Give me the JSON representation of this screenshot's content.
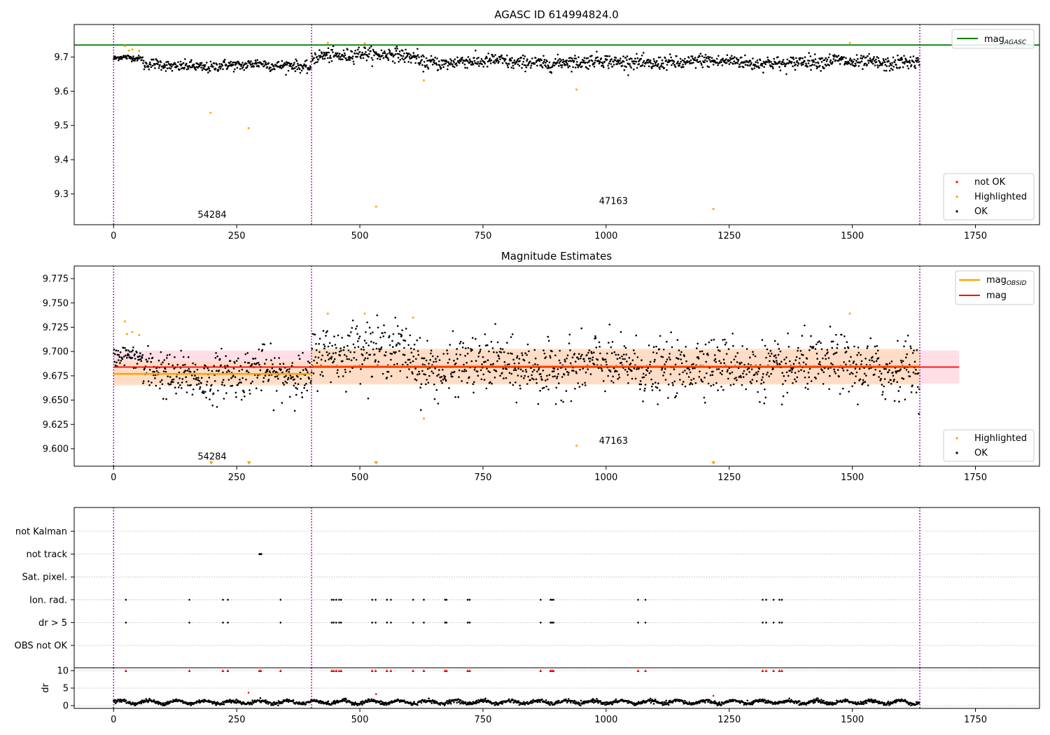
{
  "colors": {
    "ok": "#000000",
    "highlighted": "#ffa500",
    "not_ok": "#ff0000",
    "agasc_line": "#008000",
    "obsid_line": "#ffa500",
    "mag_line": "#ff0000",
    "obs_boundary": "#800080",
    "band_mag": "#ffc0cb",
    "band_obsid": "#ffdab9",
    "grid": "#b0b0b0"
  },
  "chart_data": [
    {
      "type": "scatter",
      "title": "AGASC ID 614994824.0",
      "xlim": [
        -80,
        1880
      ],
      "ylim": [
        9.21,
        9.795
      ],
      "xticks": [
        0,
        250,
        500,
        750,
        1000,
        1250,
        1500,
        1750
      ],
      "yticks": [
        9.3,
        9.4,
        9.5,
        9.6,
        9.7
      ],
      "obs_boundaries": [
        0,
        402,
        1637
      ],
      "obsids": [
        {
          "label": "54284",
          "x": 200,
          "y": 9.23
        },
        {
          "label": "47163",
          "x": 1015,
          "y": 9.27
        }
      ],
      "reference_line": {
        "label": "mag",
        "subscript": "AGASC",
        "value": 9.735
      },
      "legend_lines": [
        {
          "label": "mag",
          "subscript": "AGASC"
        }
      ],
      "legend_points": [
        "not OK",
        "Highlighted",
        "OK"
      ],
      "ok_segments": [
        {
          "x0": 0,
          "x1": 60,
          "mean": 9.695,
          "noise": 0.004
        },
        {
          "x0": 60,
          "x1": 402,
          "mean": 9.675,
          "noise": 0.008
        },
        {
          "x0": 402,
          "x1": 620,
          "mean": 9.705,
          "noise": 0.01
        },
        {
          "x0": 620,
          "x1": 1637,
          "mean": 9.685,
          "noise": 0.01
        }
      ],
      "highlighted_points": [
        [
          23,
          9.732
        ],
        [
          31,
          9.719
        ],
        [
          38,
          9.722
        ],
        [
          52,
          9.718
        ],
        [
          197,
          9.537
        ],
        [
          274,
          9.492
        ],
        [
          435,
          9.741
        ],
        [
          510,
          9.74
        ],
        [
          533,
          9.263
        ],
        [
          630,
          9.632
        ],
        [
          940,
          9.605
        ],
        [
          1218,
          9.256
        ],
        [
          1495,
          9.741
        ]
      ],
      "not_ok_points": []
    },
    {
      "type": "scatter",
      "title": "Magnitude Estimates",
      "xlim": [
        -80,
        1880
      ],
      "ylim": [
        9.582,
        9.788
      ],
      "xticks": [
        0,
        250,
        500,
        750,
        1000,
        1250,
        1500,
        1750
      ],
      "yticks": [
        9.6,
        9.625,
        9.65,
        9.675,
        9.7,
        9.725,
        9.75,
        9.775
      ],
      "obs_boundaries": [
        0,
        402,
        1637
      ],
      "obsids": [
        {
          "label": "54284",
          "x": 200,
          "y": 9.589
        },
        {
          "label": "47163",
          "x": 1015,
          "y": 9.605
        }
      ],
      "mag": {
        "label": "mag",
        "value": 9.684,
        "band": [
          9.667,
          9.701
        ],
        "x0": 0,
        "x1": 1717
      },
      "mag_obsid": [
        {
          "x0": 0,
          "x1": 402,
          "value": 9.677,
          "band": [
            9.665,
            9.69
          ]
        },
        {
          "x0": 402,
          "x1": 1637,
          "value": 9.685,
          "band": [
            9.666,
            9.703
          ]
        }
      ],
      "legend_lines": [
        {
          "label": "mag",
          "subscript": "OBSID"
        },
        {
          "label": "mag",
          "subscript": ""
        }
      ],
      "legend_points": [
        "Highlighted",
        "OK"
      ],
      "ok_segments": [
        {
          "x0": 0,
          "x1": 60,
          "mean": 9.692,
          "noise": 0.005
        },
        {
          "x0": 60,
          "x1": 402,
          "mean": 9.676,
          "noise": 0.012
        },
        {
          "x0": 402,
          "x1": 620,
          "mean": 9.7,
          "noise": 0.014
        },
        {
          "x0": 620,
          "x1": 1637,
          "mean": 9.684,
          "noise": 0.014
        }
      ],
      "highlighted_points": [
        [
          23,
          9.731
        ],
        [
          27,
          9.718
        ],
        [
          38,
          9.72
        ],
        [
          52,
          9.717
        ],
        [
          435,
          9.739
        ],
        [
          510,
          9.739
        ],
        [
          608,
          9.735
        ],
        [
          630,
          9.631
        ],
        [
          940,
          9.603
        ],
        [
          1495,
          9.739
        ]
      ],
      "offscale_markers": [
        198,
        275,
        533,
        1218
      ]
    },
    {
      "type": "scatter",
      "title": "",
      "xlim": [
        -80,
        1880
      ],
      "categories": [
        "not Kalman",
        "not track",
        "Sat. pixel.",
        "Ion. rad.",
        "dr > 5",
        "OBS not OK"
      ],
      "obs_boundaries": [
        0,
        402,
        1637
      ],
      "flag_points": {
        "not Kalman": [],
        "not track": [
          296,
          297,
          298,
          299,
          300
        ],
        "Sat. pixel.": [],
        "Ion. rad.": [
          25,
          154,
          222,
          232,
          339,
          443,
          447,
          452,
          458,
          462,
          525,
          532,
          555,
          563,
          608,
          630,
          673,
          676,
          719,
          723,
          867,
          887,
          890,
          893,
          1065,
          1080,
          1318,
          1325,
          1340,
          1352,
          1357
        ],
        "dr > 5": [
          25,
          154,
          222,
          232,
          339,
          443,
          447,
          452,
          458,
          462,
          525,
          532,
          555,
          563,
          608,
          630,
          673,
          676,
          719,
          723,
          867,
          887,
          890,
          893,
          1065,
          1080,
          1318,
          1325,
          1340,
          1352,
          1357
        ],
        "OBS not OK": []
      }
    },
    {
      "type": "scatter",
      "title": "",
      "xlabel": "",
      "ylabel": "dr",
      "xlim": [
        -80,
        1880
      ],
      "ylim": [
        -0.8,
        10.8
      ],
      "xticks": [
        0,
        250,
        500,
        750,
        1000,
        1250,
        1500,
        1750
      ],
      "yticks": [
        0,
        5,
        10
      ],
      "obs_boundaries": [
        0,
        402,
        1637
      ],
      "dr_mean": 1.0,
      "clipped_at": 10,
      "clipped_points": [
        25,
        154,
        222,
        232,
        296,
        299,
        339,
        443,
        447,
        452,
        458,
        462,
        525,
        532,
        555,
        563,
        608,
        630,
        673,
        676,
        719,
        723,
        867,
        887,
        890,
        893,
        1065,
        1080,
        1318,
        1325,
        1340,
        1352,
        1357
      ],
      "highlighted_points": [
        [
          274,
          3.7
        ],
        [
          533,
          3.3
        ],
        [
          1218,
          2.8
        ]
      ]
    }
  ]
}
